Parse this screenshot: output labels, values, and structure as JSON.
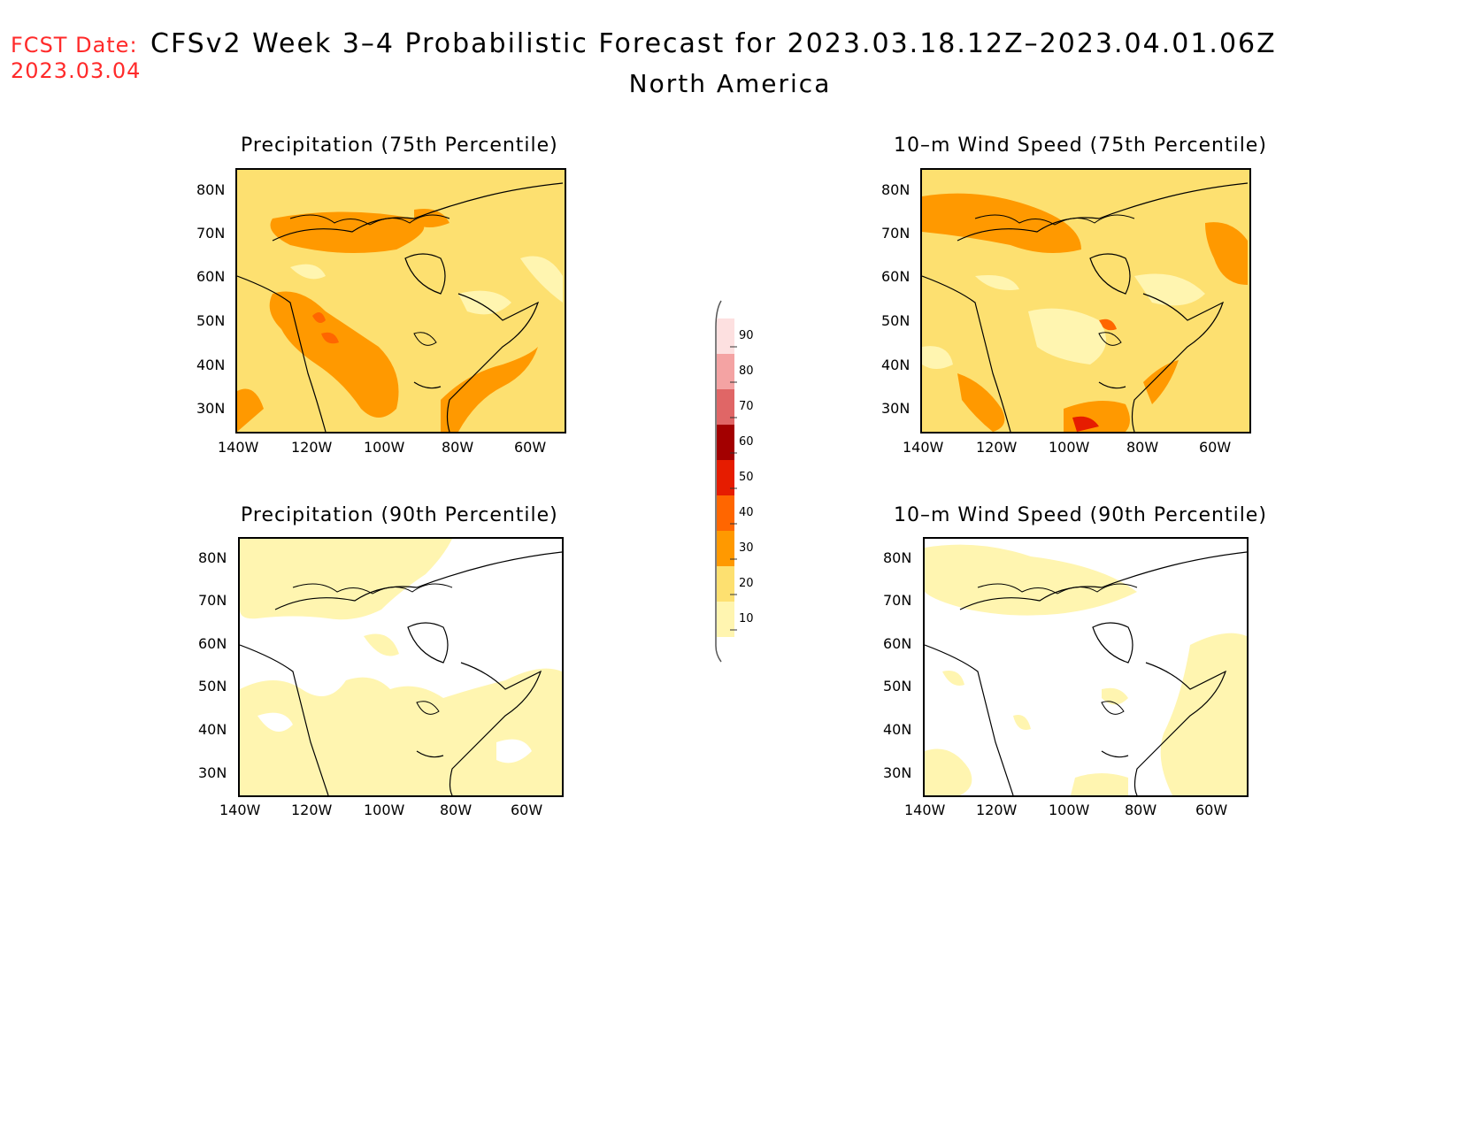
{
  "header": {
    "fcst_label": "FCST Date:",
    "fcst_date": "2023.03.04",
    "title": "CFSv2 Week 3–4 Probabilistic Forecast for 2023.03.18.12Z–2023.04.01.06Z",
    "region": "North America"
  },
  "axes": {
    "lat_ticks": [
      "80N",
      "70N",
      "60N",
      "50N",
      "40N",
      "30N"
    ],
    "lon_ticks": [
      "140W",
      "120W",
      "100W",
      "80W",
      "60W"
    ]
  },
  "panels": [
    {
      "id": "precip-75",
      "title": "Precipitation (75th Percentile)",
      "dominant_level": 20
    },
    {
      "id": "wind-75",
      "title": "10–m Wind Speed (75th Percentile)",
      "dominant_level": 20
    },
    {
      "id": "precip-90",
      "title": "Precipitation (90th Percentile)",
      "dominant_level": 10
    },
    {
      "id": "wind-90",
      "title": "10–m Wind Speed (90th Percentile)",
      "dominant_level": 0
    }
  ],
  "colorbar": {
    "labels": [
      "90",
      "80",
      "70",
      "60",
      "50",
      "40",
      "30",
      "20",
      "10"
    ],
    "colors": [
      "#fde0e0",
      "#f4a3a3",
      "#e06666",
      "#a30000",
      "#e61c00",
      "#ff6600",
      "#ff9900",
      "#fde070",
      "#fff5b0"
    ]
  },
  "palette": {
    "level_10": "#fff5b0",
    "level_20": "#fde070",
    "level_30": "#ff9900",
    "level_40": "#ff6600",
    "level_50": "#e61c00",
    "title_red": "#ff2a2a"
  }
}
